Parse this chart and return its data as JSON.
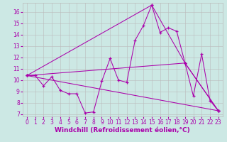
{
  "xlabel": "Windchill (Refroidissement éolien,°C)",
  "bg_color": "#cce8e4",
  "line_color": "#aa00aa",
  "grid_color": "#bbbbbb",
  "xlim": [
    -0.5,
    23.5
  ],
  "ylim": [
    6.8,
    16.8
  ],
  "yticks": [
    7,
    8,
    9,
    10,
    11,
    12,
    13,
    14,
    15,
    16
  ],
  "xticks": [
    0,
    1,
    2,
    3,
    4,
    5,
    6,
    7,
    8,
    9,
    10,
    11,
    12,
    13,
    14,
    15,
    16,
    17,
    18,
    19,
    20,
    21,
    22,
    23
  ],
  "line1_x": [
    0,
    1,
    2,
    3,
    4,
    5,
    6,
    7,
    8,
    9,
    10,
    11,
    12,
    13,
    14,
    15,
    16,
    17,
    18,
    19,
    20,
    21,
    22,
    23
  ],
  "line1_y": [
    10.4,
    10.4,
    9.5,
    10.3,
    9.1,
    8.8,
    8.8,
    7.1,
    7.2,
    9.9,
    11.9,
    10.0,
    9.8,
    13.5,
    14.8,
    16.6,
    14.2,
    14.6,
    14.3,
    11.5,
    8.6,
    12.3,
    8.2,
    7.3
  ],
  "line2_x": [
    0,
    23
  ],
  "line2_y": [
    10.4,
    7.3
  ],
  "line3_x": [
    0,
    19,
    23
  ],
  "line3_y": [
    10.4,
    11.5,
    7.3
  ],
  "line4_x": [
    0,
    15,
    19,
    23
  ],
  "line4_y": [
    10.4,
    16.6,
    11.5,
    7.3
  ],
  "tick_fontsize": 5.5,
  "xlabel_fontsize": 6.5
}
